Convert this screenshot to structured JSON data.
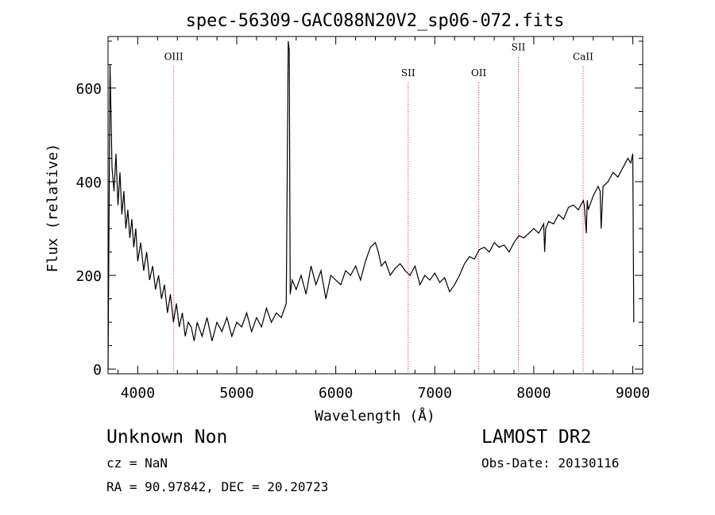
{
  "chart_data": {
    "type": "line",
    "title": "spec-56309-GAC088N20V2_sp06-072.fits",
    "xlabel": "Wavelength (Å)",
    "ylabel": "Flux (relative)",
    "xlim": [
      3700,
      9100
    ],
    "ylim": [
      -10,
      710
    ],
    "x_ticks": [
      4000,
      5000,
      6000,
      7000,
      8000,
      9000
    ],
    "y_ticks": [
      0,
      200,
      400,
      600
    ],
    "grid": false,
    "series": [
      {
        "x": [
          3700,
          3720,
          3740,
          3760,
          3780,
          3800,
          3820,
          3840,
          3860,
          3880,
          3900,
          3920,
          3940,
          3960,
          3980,
          4000,
          4030,
          4060,
          4090,
          4120,
          4150,
          4180,
          4210,
          4240,
          4270,
          4300,
          4330,
          4360,
          4390,
          4420,
          4450,
          4480,
          4510,
          4540,
          4570,
          4600,
          4650,
          4700,
          4750,
          4800,
          4850,
          4900,
          4950,
          5000,
          5050,
          5100,
          5150,
          5200,
          5250,
          5300,
          5350,
          5400,
          5450,
          5500,
          5520,
          5530,
          5540,
          5560,
          5600,
          5650,
          5700,
          5750,
          5800,
          5850,
          5900,
          5950,
          6000,
          6050,
          6100,
          6150,
          6200,
          6250,
          6300,
          6350,
          6400,
          6430,
          6460,
          6500,
          6550,
          6600,
          6650,
          6700,
          6750,
          6800,
          6850,
          6900,
          6950,
          7000,
          7050,
          7100,
          7150,
          7200,
          7250,
          7300,
          7350,
          7400,
          7450,
          7500,
          7550,
          7600,
          7650,
          7700,
          7750,
          7800,
          7850,
          7900,
          7950,
          8000,
          8050,
          8100,
          8110,
          8120,
          8150,
          8200,
          8250,
          8300,
          8350,
          8400,
          8450,
          8500,
          8510,
          8530,
          8540,
          8550,
          8600,
          8650,
          8670,
          8680,
          8700,
          8750,
          8800,
          8850,
          8900,
          8950,
          8980,
          9000,
          9010
        ],
        "y": [
          0,
          650,
          430,
          380,
          460,
          350,
          420,
          330,
          380,
          300,
          340,
          280,
          320,
          260,
          300,
          230,
          270,
          210,
          250,
          190,
          220,
          170,
          200,
          150,
          180,
          120,
          160,
          100,
          140,
          90,
          120,
          70,
          100,
          90,
          60,
          100,
          70,
          110,
          60,
          100,
          80,
          110,
          70,
          100,
          90,
          120,
          80,
          110,
          90,
          130,
          100,
          120,
          110,
          140,
          700,
          680,
          160,
          190,
          170,
          200,
          160,
          220,
          180,
          210,
          150,
          200,
          190,
          180,
          210,
          200,
          220,
          190,
          230,
          260,
          270,
          250,
          220,
          230,
          200,
          215,
          225,
          210,
          200,
          220,
          180,
          200,
          190,
          205,
          185,
          195,
          165,
          180,
          200,
          225,
          240,
          235,
          255,
          260,
          250,
          270,
          260,
          265,
          250,
          270,
          285,
          280,
          290,
          300,
          290,
          310,
          250,
          300,
          315,
          310,
          330,
          320,
          345,
          350,
          340,
          360,
          350,
          290,
          360,
          340,
          370,
          390,
          380,
          300,
          390,
          400,
          420,
          410,
          430,
          450,
          440,
          460,
          100
        ]
      }
    ],
    "annotations": [
      {
        "label": "OIII",
        "x": 4363,
        "y_label": 660
      },
      {
        "label": "SII",
        "x": 6731,
        "y_label": 625
      },
      {
        "label": "OII",
        "x": 7444,
        "y_label": 625
      },
      {
        "label": "SII",
        "x": 7844,
        "y_label": 680
      },
      {
        "label": "CaII",
        "x": 8498,
        "y_label": 660
      }
    ]
  },
  "info": {
    "class": "Unknown   Non",
    "cz": "cz = NaN",
    "radec": "RA =  90.97842, DEC =  20.20723",
    "survey": "LAMOST DR2",
    "obs_date": "Obs-Date: 20130116"
  },
  "colors": {
    "line": "#000000",
    "marker": "#b22222"
  }
}
